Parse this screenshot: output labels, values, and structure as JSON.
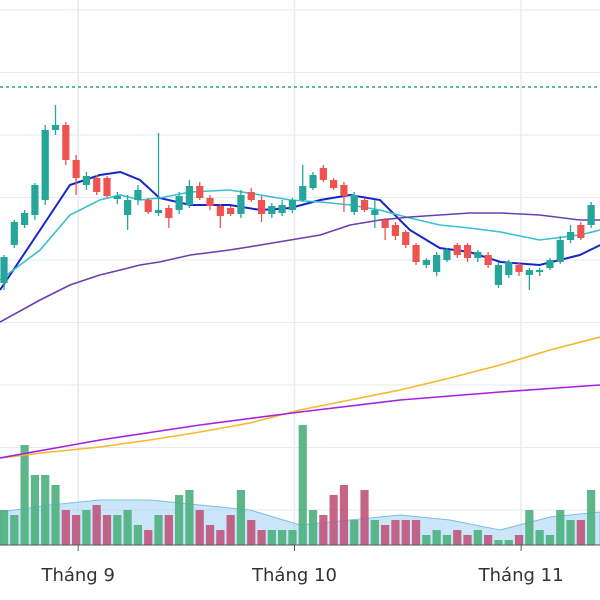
{
  "chart_data": {
    "type": "candlestick",
    "xlim": [
      -0.39,
      57.86
    ],
    "xticks": [
      {
        "value": 7.2,
        "label": "Tháng 9"
      },
      {
        "value": 28.2,
        "label": "Tháng 10"
      },
      {
        "value": 50.2,
        "label": "Tháng 11"
      }
    ],
    "ylim": [
      0,
      600
    ],
    "volume_ylim": [
      0,
      545
    ],
    "up_color": "#26a69a",
    "down_color": "#ef5350",
    "volume_up_color": "#4caf7d",
    "volume_down_color": "#c0547a",
    "reference_line": 513,
    "reference_color": "#26a69a",
    "candles": [
      [
        317,
        345,
        310,
        343
      ],
      [
        355,
        380,
        352,
        378
      ],
      [
        375,
        390,
        372,
        387
      ],
      [
        385,
        417,
        380,
        415
      ],
      [
        400,
        475,
        395,
        470
      ],
      [
        470,
        495,
        465,
        475
      ],
      [
        475,
        478,
        435,
        440
      ],
      [
        440,
        445,
        405,
        422
      ],
      [
        415,
        428,
        410,
        424
      ],
      [
        422,
        425,
        405,
        408
      ],
      [
        422,
        424,
        402,
        404
      ],
      [
        401,
        408,
        396,
        404
      ],
      [
        385,
        405,
        370,
        400
      ],
      [
        400,
        415,
        395,
        410
      ],
      [
        400,
        402,
        386,
        388
      ],
      [
        387,
        467,
        384,
        390
      ],
      [
        392,
        395,
        372,
        382
      ],
      [
        390,
        408,
        386,
        404
      ],
      [
        395,
        420,
        392,
        414
      ],
      [
        414,
        418,
        400,
        402
      ],
      [
        402,
        405,
        390,
        394
      ],
      [
        394,
        396,
        372,
        384
      ],
      [
        392,
        394,
        384,
        386
      ],
      [
        386,
        410,
        382,
        405
      ],
      [
        408,
        412,
        398,
        400
      ],
      [
        400,
        404,
        378,
        386
      ],
      [
        386,
        397,
        382,
        394
      ],
      [
        387,
        400,
        384,
        395
      ],
      [
        390,
        402,
        387,
        400
      ],
      [
        400,
        435,
        398,
        414
      ],
      [
        412,
        428,
        410,
        425
      ],
      [
        432,
        435,
        418,
        420
      ],
      [
        420,
        422,
        410,
        412
      ],
      [
        415,
        418,
        388,
        404
      ],
      [
        388,
        408,
        385,
        405
      ],
      [
        400,
        402,
        388,
        390
      ],
      [
        385,
        400,
        372,
        390
      ],
      [
        380,
        382,
        360,
        372
      ],
      [
        375,
        378,
        360,
        364
      ],
      [
        368,
        370,
        352,
        355
      ],
      [
        355,
        357,
        335,
        338
      ],
      [
        335,
        342,
        332,
        340
      ],
      [
        328,
        348,
        324,
        345
      ],
      [
        340,
        352,
        338,
        350
      ],
      [
        355,
        357,
        342,
        345
      ],
      [
        355,
        357,
        338,
        342
      ],
      [
        342,
        350,
        338,
        348
      ],
      [
        345,
        348,
        332,
        335
      ],
      [
        315,
        338,
        312,
        335
      ],
      [
        325,
        340,
        322,
        338
      ],
      [
        335,
        338,
        324,
        328
      ],
      [
        325,
        332,
        310,
        330
      ],
      [
        328,
        332,
        324,
        330
      ],
      [
        332,
        342,
        330,
        340
      ],
      [
        338,
        364,
        336,
        360
      ],
      [
        360,
        375,
        357,
        368
      ],
      [
        375,
        378,
        360,
        362
      ],
      [
        375,
        398,
        372,
        395
      ]
    ],
    "volumes": [
      35,
      30,
      100,
      70,
      70,
      60,
      35,
      30,
      35,
      40,
      30,
      30,
      35,
      20,
      15,
      30,
      30,
      50,
      55,
      35,
      20,
      15,
      30,
      55,
      25,
      15,
      15,
      15,
      15,
      120,
      35,
      30,
      50,
      60,
      25,
      55,
      25,
      20,
      25,
      25,
      25,
      10,
      15,
      10,
      15,
      10,
      15,
      10,
      5,
      5,
      10,
      35,
      15,
      10,
      35,
      25,
      25,
      55
    ],
    "volume_ma": {
      "color": "#a9d4f5",
      "x": [
        -0.39,
        4.47,
        9.32,
        14.17,
        19.03,
        23.88,
        28.74,
        33.59,
        38.45,
        43.3,
        48.16,
        53.01,
        57.86
      ],
      "values": [
        33,
        40,
        45,
        45,
        40,
        35,
        20,
        25,
        30,
        25,
        15,
        28,
        33
      ]
    },
    "lines": [
      {
        "color": "#1526c8",
        "x": [
          -0.39,
          3.5,
          6.4,
          9.3,
          11.3,
          13.2,
          15.1,
          18.1,
          21.9,
          24.9,
          27.8,
          30.7,
          33.6,
          36.5,
          39.4,
          42.3,
          45.2,
          48.2,
          52.0,
          55.9,
          57.9
        ],
        "values": [
          310,
          370,
          415,
          425,
          428,
          420,
          402,
          395,
          395,
          390,
          392,
          400,
          405,
          400,
          370,
          352,
          348,
          338,
          335,
          345,
          355
        ]
      },
      {
        "color": "#38c0d0",
        "x": [
          -0.39,
          3.5,
          6.4,
          9.3,
          11.3,
          13.2,
          15.1,
          18.1,
          21.9,
          24.9,
          27.8,
          30.7,
          33.6,
          36.5,
          39.4,
          42.3,
          45.2,
          48.2,
          52.0,
          55.9,
          57.9
        ],
        "values": [
          320,
          350,
          385,
          400,
          405,
          400,
          402,
          408,
          410,
          405,
          400,
          398,
          395,
          390,
          382,
          375,
          372,
          368,
          360,
          365,
          370
        ]
      },
      {
        "color": "#6a3fb0",
        "x": [
          -0.39,
          3.5,
          6.4,
          9.3,
          11.3,
          13.2,
          15.1,
          18.1,
          21.9,
          24.9,
          27.8,
          30.7,
          33.6,
          36.5,
          39.4,
          42.3,
          45.2,
          48.2,
          52.0,
          55.9,
          57.9
        ],
        "values": [
          278,
          300,
          315,
          325,
          330,
          335,
          338,
          345,
          350,
          355,
          360,
          365,
          375,
          380,
          383,
          385,
          387,
          387,
          385,
          380,
          380
        ]
      },
      {
        "color": "#f5b82e",
        "x": [
          -0.39,
          4.47,
          9.32,
          14.17,
          19.03,
          23.88,
          28.74,
          33.59,
          38.45,
          43.3,
          48.16,
          53.01,
          57.86
        ],
        "values": [
          142,
          148,
          153,
          160,
          168,
          177,
          190,
          200,
          210,
          222,
          235,
          250,
          263
        ]
      },
      {
        "color": "#a522e0",
        "x": [
          -0.39,
          9.32,
          19.03,
          28.74,
          38.45,
          48.16,
          57.86
        ],
        "values": [
          142,
          160,
          175,
          188,
          200,
          208,
          215
        ]
      }
    ]
  }
}
